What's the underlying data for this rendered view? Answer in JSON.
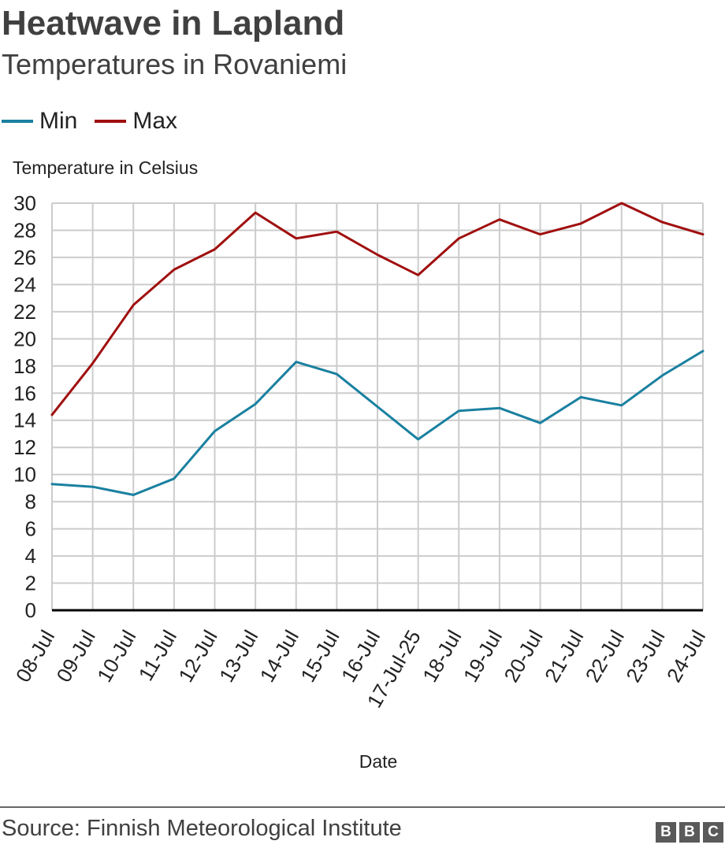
{
  "chart_data": {
    "type": "line",
    "title": "Heatwave in Lapland",
    "subtitle": "Temperatures in Rovaniemi",
    "xlabel": "Date",
    "ylabel": "Temperature in Celsius",
    "ylim": [
      0,
      30
    ],
    "yticks": [
      0,
      2,
      4,
      6,
      8,
      10,
      12,
      14,
      16,
      18,
      20,
      22,
      24,
      26,
      28,
      30
    ],
    "grid": true,
    "legend_position": "top-left",
    "categories": [
      "08-Jul",
      "09-Jul",
      "10-Jul",
      "11-Jul",
      "12-Jul",
      "13-Jul",
      "14-Jul",
      "15-Jul",
      "16-Jul",
      "17-Jul-25",
      "18-Jul",
      "19-Jul",
      "20-Jul",
      "21-Jul",
      "22-Jul",
      "23-Jul",
      "24-Jul"
    ],
    "series": [
      {
        "name": "Min",
        "color": "#1a80a0",
        "values": [
          9.3,
          9.1,
          8.5,
          9.7,
          13.2,
          15.2,
          18.3,
          17.4,
          15.0,
          12.6,
          14.7,
          14.9,
          13.8,
          15.7,
          15.1,
          17.3,
          19.1
        ]
      },
      {
        "name": "Max",
        "color": "#a00f0f",
        "values": [
          14.4,
          18.2,
          22.5,
          25.1,
          26.6,
          29.3,
          27.4,
          27.9,
          26.2,
          24.7,
          27.4,
          28.8,
          27.7,
          28.5,
          30.0,
          28.6,
          27.7
        ]
      }
    ]
  },
  "footer": {
    "source": "Source: Finnish Meteorological Institute",
    "logo_letters": [
      "B",
      "B",
      "C"
    ]
  },
  "colors": {
    "grid": "#cccccc",
    "baseline": "#000000",
    "text": "#222222"
  }
}
